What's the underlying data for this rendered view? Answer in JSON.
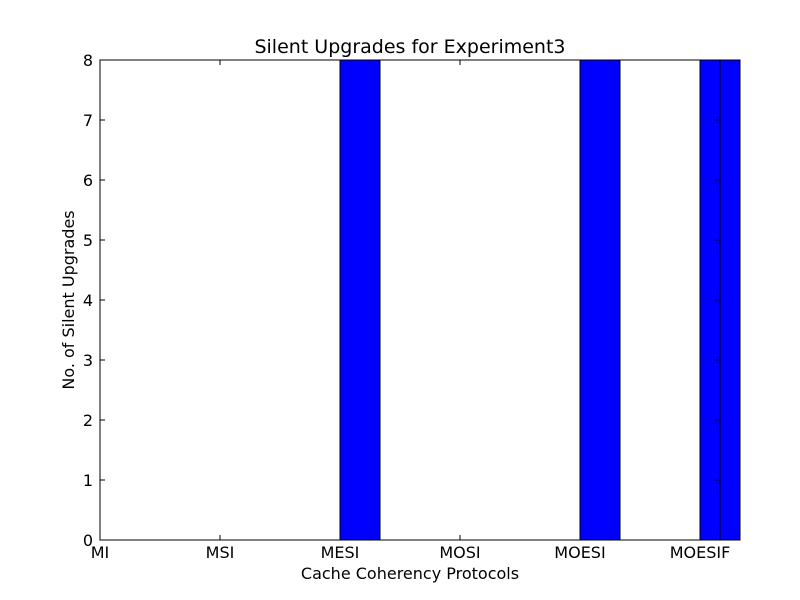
{
  "chart_data": {
    "type": "bar",
    "title": "Silent Upgrades for Experiment3",
    "xlabel": "Cache Coherency Protocols",
    "ylabel": "No. of Silent Upgrades",
    "categories": [
      "MI",
      "MSI",
      "MESI",
      "MOSI",
      "MOESI",
      "MOESIF"
    ],
    "values": [
      0,
      0,
      8,
      0,
      8,
      8
    ],
    "ylim": [
      0,
      8
    ],
    "yticks": [
      0,
      1,
      2,
      3,
      4,
      5,
      6,
      7,
      8
    ],
    "grid": false,
    "bar_color": "#0000ff",
    "bar_edge_color": "#000000"
  }
}
